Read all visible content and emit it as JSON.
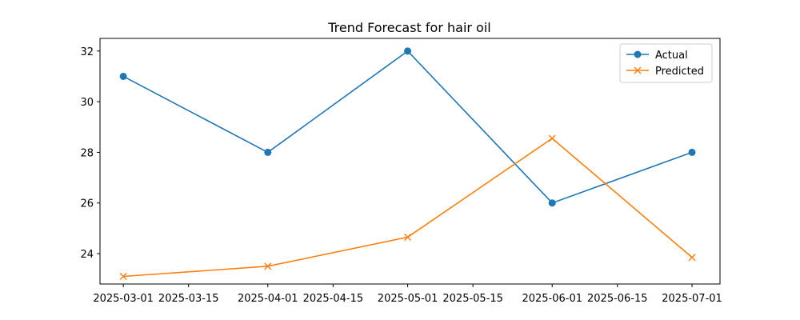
{
  "chart_data": {
    "type": "line",
    "title": "Trend Forecast for hair oil",
    "xlabel": "",
    "ylabel": "",
    "x": [
      "2025-03-01",
      "2025-04-01",
      "2025-05-01",
      "2025-06-01",
      "2025-07-01"
    ],
    "x_ticks": [
      "2025-03-01",
      "2025-03-15",
      "2025-04-01",
      "2025-04-15",
      "2025-05-01",
      "2025-05-15",
      "2025-06-01",
      "2025-06-15",
      "2025-07-01"
    ],
    "xlim": [
      "2025-02-24",
      "2025-07-07"
    ],
    "y_ticks": [
      24,
      26,
      28,
      30,
      32
    ],
    "ylim": [
      22.8,
      32.5
    ],
    "grid": false,
    "legend": "top-right",
    "series": [
      {
        "name": "Actual",
        "values": [
          31,
          28,
          32,
          26,
          28
        ],
        "color": "#1f77b4",
        "marker": "circle"
      },
      {
        "name": "Predicted",
        "values": [
          23.1,
          23.5,
          24.65,
          28.55,
          23.85
        ],
        "color": "#ff7f0e",
        "marker": "x"
      }
    ]
  }
}
